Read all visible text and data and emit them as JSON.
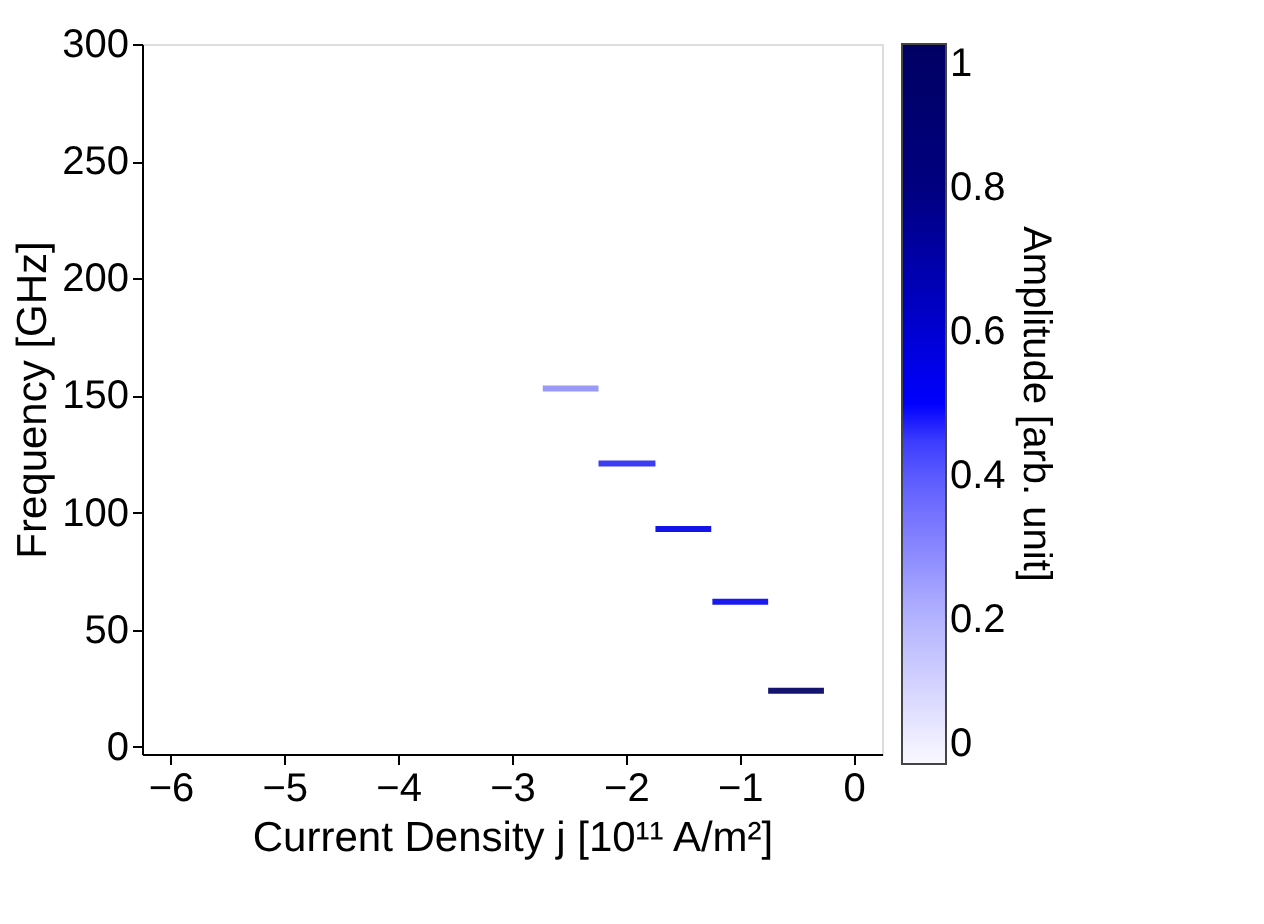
{
  "chart_data": {
    "type": "line",
    "xlabel": "Current Density  j [10¹¹ A/m²]",
    "ylabel": "Frequency  [GHz]",
    "clabel": "Amplitude [arb. unit]",
    "xlim": [
      -6.25,
      0.25
    ],
    "xticks": [
      -6,
      -5,
      -4,
      -3,
      -2,
      -1,
      0
    ],
    "ylim": [
      -3,
      300
    ],
    "yticks": [
      0,
      50,
      100,
      150,
      200,
      250,
      300
    ],
    "clim": [
      0,
      1
    ],
    "cticks": [
      0,
      0.2,
      0.4,
      0.6,
      0.8,
      1
    ],
    "grid": false,
    "marker": "none",
    "line_style": "solid",
    "series": [
      {
        "x": [
          -2.73,
          -2.24
        ],
        "values": [
          153,
          153
        ],
        "color": "#9a9af6"
      },
      {
        "x": [
          -2.24,
          -1.74
        ],
        "values": [
          121,
          121
        ],
        "color": "#3c3cf2"
      },
      {
        "x": [
          -1.74,
          -1.25
        ],
        "values": [
          93,
          93
        ],
        "color": "#1414e8"
      },
      {
        "x": [
          -1.24,
          -0.75
        ],
        "values": [
          62,
          62
        ],
        "color": "#1a1aee"
      },
      {
        "x": [
          -0.75,
          -0.26
        ],
        "values": [
          24,
          24
        ],
        "color": "#14146e"
      }
    ]
  }
}
